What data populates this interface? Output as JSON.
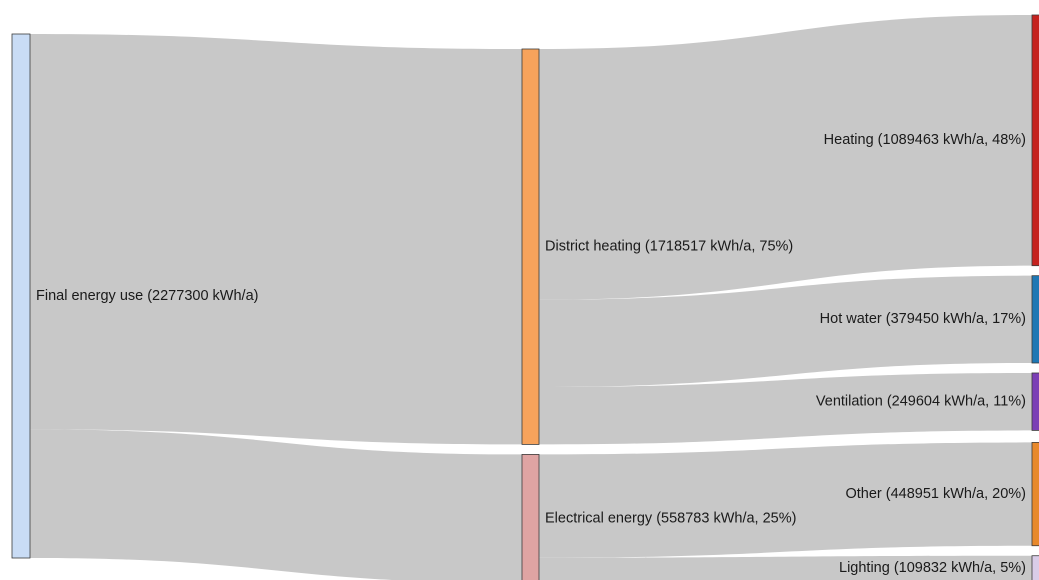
{
  "chart_data": {
    "type": "sankey",
    "units": "kWh/a",
    "nodes": [
      {
        "id": "final",
        "label": "Final energy use (2277300 kWh/a)",
        "value": 2277300,
        "color": "#c9dcf5",
        "column": 0
      },
      {
        "id": "district",
        "label": "District heating (1718517 kWh/a, 75%)",
        "value": 1718517,
        "share": 75,
        "color": "#f7a35c",
        "column": 1
      },
      {
        "id": "electrical",
        "label": "Electrical energy (558783 kWh/a, 25%)",
        "value": 558783,
        "share": 25,
        "color": "#dfa4a3",
        "column": 1
      },
      {
        "id": "heating",
        "label": "Heating (1089463 kWh/a, 48%)",
        "value": 1089463,
        "share": 48,
        "color": "#c5221f",
        "column": 2
      },
      {
        "id": "hotwater",
        "label": "Hot water (379450 kWh/a, 17%)",
        "value": 379450,
        "share": 17,
        "color": "#1f77b4",
        "column": 2
      },
      {
        "id": "ventilation",
        "label": "Ventilation (249604 kWh/a, 11%)",
        "value": 249604,
        "share": 11,
        "color": "#7b3fb5",
        "column": 2
      },
      {
        "id": "other",
        "label": "Other (448951 kWh/a, 20%)",
        "value": 448951,
        "share": 20,
        "color": "#e8892c",
        "column": 2
      },
      {
        "id": "lighting",
        "label": "Lighting (109832 kWh/a, 5%)",
        "value": 109832,
        "share": 5,
        "color": "#d9cce8",
        "column": 2
      }
    ],
    "links": [
      {
        "source": "final",
        "target": "district",
        "value": 1718517
      },
      {
        "source": "final",
        "target": "electrical",
        "value": 558783
      },
      {
        "source": "district",
        "target": "heating",
        "value": 1089463
      },
      {
        "source": "district",
        "target": "hotwater",
        "value": 379450
      },
      {
        "source": "district",
        "target": "ventilation",
        "value": 249604
      },
      {
        "source": "electrical",
        "target": "other",
        "value": 448951
      },
      {
        "source": "electrical",
        "target": "lighting",
        "value": 109832
      }
    ]
  }
}
